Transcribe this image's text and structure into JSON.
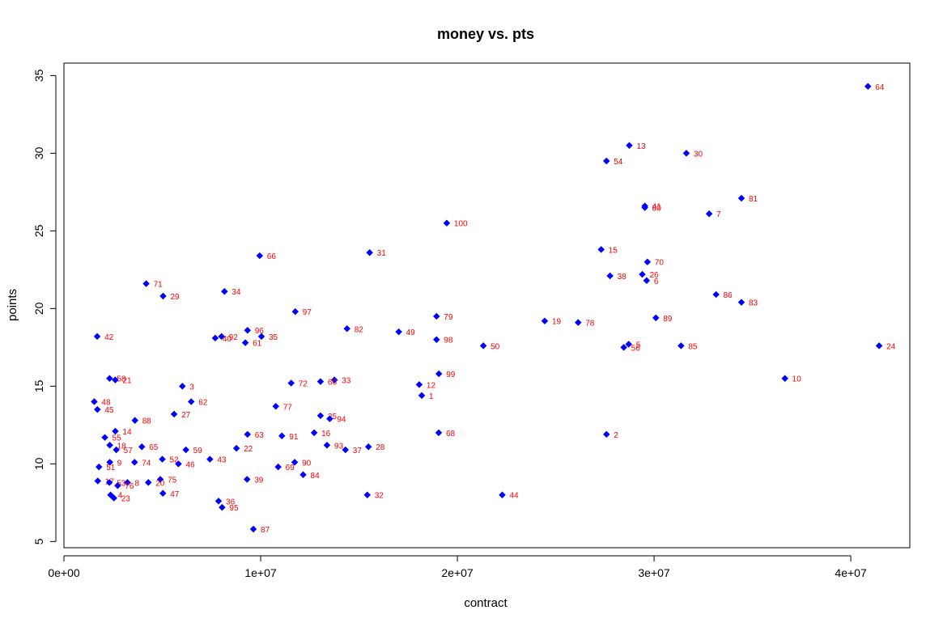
{
  "chart_data": {
    "type": "scatter",
    "title": "money vs. pts",
    "xlabel": "contract",
    "ylabel": "points",
    "xlim": [
      0,
      43000000
    ],
    "ylim": [
      4.6,
      35.8
    ],
    "x_ticks": [
      0,
      10000000,
      20000000,
      30000000,
      40000000
    ],
    "x_tick_labels": [
      "0e+00",
      "1e+07",
      "2e+07",
      "3e+07",
      "4e+07"
    ],
    "y_ticks": [
      5,
      10,
      15,
      20,
      25,
      30,
      35
    ],
    "y_tick_labels": [
      "5",
      "10",
      "15",
      "20",
      "25",
      "30",
      "35"
    ],
    "grid": false,
    "point_color": "#0000ff",
    "label_color": "#ff0000",
    "points": [
      {
        "label": "64",
        "x": 40870000,
        "y": 34.3
      },
      {
        "label": "13",
        "x": 28740000,
        "y": 30.5
      },
      {
        "label": "30",
        "x": 31640000,
        "y": 30.0
      },
      {
        "label": "54",
        "x": 27580000,
        "y": 29.5
      },
      {
        "label": "81",
        "x": 34440000,
        "y": 27.1
      },
      {
        "label": "41",
        "x": 29530000,
        "y": 26.6
      },
      {
        "label": "80",
        "x": 29530000,
        "y": 26.5
      },
      {
        "label": "7",
        "x": 32800000,
        "y": 26.1
      },
      {
        "label": "100",
        "x": 19460000,
        "y": 25.5
      },
      {
        "label": "15",
        "x": 27310000,
        "y": 23.8
      },
      {
        "label": "31",
        "x": 15540000,
        "y": 23.6
      },
      {
        "label": "66",
        "x": 9950000,
        "y": 23.4
      },
      {
        "label": "70",
        "x": 29660000,
        "y": 23.0
      },
      {
        "label": "38",
        "x": 27760000,
        "y": 22.1
      },
      {
        "label": "26",
        "x": 29400000,
        "y": 22.2
      },
      {
        "label": "6",
        "x": 29620000,
        "y": 21.8
      },
      {
        "label": "71",
        "x": 4180000,
        "y": 21.6
      },
      {
        "label": "34",
        "x": 8160000,
        "y": 21.1
      },
      {
        "label": "86",
        "x": 33150000,
        "y": 20.9
      },
      {
        "label": "29",
        "x": 5040000,
        "y": 20.8
      },
      {
        "label": "83",
        "x": 34440000,
        "y": 20.4
      },
      {
        "label": "97",
        "x": 11760000,
        "y": 19.8
      },
      {
        "label": "79",
        "x": 18940000,
        "y": 19.5
      },
      {
        "label": "89",
        "x": 30090000,
        "y": 19.4
      },
      {
        "label": "19",
        "x": 24440000,
        "y": 19.2
      },
      {
        "label": "78",
        "x": 26140000,
        "y": 19.1
      },
      {
        "label": "82",
        "x": 14390000,
        "y": 18.7
      },
      {
        "label": "96",
        "x": 9330000,
        "y": 18.6
      },
      {
        "label": "49",
        "x": 17020000,
        "y": 18.5
      },
      {
        "label": "42",
        "x": 1690000,
        "y": 18.2
      },
      {
        "label": "35",
        "x": 10040000,
        "y": 18.2
      },
      {
        "label": "92",
        "x": 8010000,
        "y": 18.2
      },
      {
        "label": "40",
        "x": 7690000,
        "y": 18.1
      },
      {
        "label": "98",
        "x": 18940000,
        "y": 18.0
      },
      {
        "label": "61",
        "x": 9220000,
        "y": 17.8
      },
      {
        "label": "5",
        "x": 28710000,
        "y": 17.7
      },
      {
        "label": "24",
        "x": 41440000,
        "y": 17.6
      },
      {
        "label": "85",
        "x": 31370000,
        "y": 17.6
      },
      {
        "label": "50",
        "x": 21320000,
        "y": 17.6
      },
      {
        "label": "56",
        "x": 28460000,
        "y": 17.5
      },
      {
        "label": "99",
        "x": 19060000,
        "y": 15.8
      },
      {
        "label": "10",
        "x": 36650000,
        "y": 15.5
      },
      {
        "label": "58",
        "x": 2320000,
        "y": 15.5
      },
      {
        "label": "21",
        "x": 2610000,
        "y": 15.4
      },
      {
        "label": "33",
        "x": 13750000,
        "y": 15.4
      },
      {
        "label": "60",
        "x": 13040000,
        "y": 15.3
      },
      {
        "label": "72",
        "x": 11550000,
        "y": 15.2
      },
      {
        "label": "12",
        "x": 18060000,
        "y": 15.1
      },
      {
        "label": "3",
        "x": 6020000,
        "y": 15.0
      },
      {
        "label": "1",
        "x": 18190000,
        "y": 14.4
      },
      {
        "label": "48",
        "x": 1540000,
        "y": 14.0
      },
      {
        "label": "62",
        "x": 6470000,
        "y": 14.0
      },
      {
        "label": "77",
        "x": 10770000,
        "y": 13.7
      },
      {
        "label": "45",
        "x": 1700000,
        "y": 13.5
      },
      {
        "label": "27",
        "x": 5600000,
        "y": 13.2
      },
      {
        "label": "25",
        "x": 13040000,
        "y": 13.1
      },
      {
        "label": "94",
        "x": 13510000,
        "y": 12.9
      },
      {
        "label": "88",
        "x": 3610000,
        "y": 12.8
      },
      {
        "label": "14",
        "x": 2610000,
        "y": 12.1
      },
      {
        "label": "68",
        "x": 19050000,
        "y": 12.0
      },
      {
        "label": "16",
        "x": 12720000,
        "y": 12.0
      },
      {
        "label": "2",
        "x": 27580000,
        "y": 11.9
      },
      {
        "label": "63",
        "x": 9330000,
        "y": 11.9
      },
      {
        "label": "91",
        "x": 11080000,
        "y": 11.8
      },
      {
        "label": "55",
        "x": 2080000,
        "y": 11.7
      },
      {
        "label": "93",
        "x": 13370000,
        "y": 11.2
      },
      {
        "label": "18",
        "x": 2330000,
        "y": 11.2
      },
      {
        "label": "65",
        "x": 3960000,
        "y": 11.1
      },
      {
        "label": "28",
        "x": 15480000,
        "y": 11.1
      },
      {
        "label": "22",
        "x": 8770000,
        "y": 11.0
      },
      {
        "label": "37",
        "x": 14310000,
        "y": 10.9
      },
      {
        "label": "57",
        "x": 2660000,
        "y": 10.9
      },
      {
        "label": "59",
        "x": 6200000,
        "y": 10.9
      },
      {
        "label": "52",
        "x": 5000000,
        "y": 10.3
      },
      {
        "label": "43",
        "x": 7420000,
        "y": 10.3
      },
      {
        "label": "90",
        "x": 11730000,
        "y": 10.1
      },
      {
        "label": "9",
        "x": 2330000,
        "y": 10.1
      },
      {
        "label": "74",
        "x": 3590000,
        "y": 10.1
      },
      {
        "label": "46",
        "x": 5820000,
        "y": 10.0
      },
      {
        "label": "51",
        "x": 1780000,
        "y": 9.8
      },
      {
        "label": "69",
        "x": 10890000,
        "y": 9.8
      },
      {
        "label": "84",
        "x": 12160000,
        "y": 9.3
      },
      {
        "label": "39",
        "x": 9310000,
        "y": 9.0
      },
      {
        "label": "75",
        "x": 4900000,
        "y": 9.0
      },
      {
        "label": "17",
        "x": 1720000,
        "y": 8.9
      },
      {
        "label": "53",
        "x": 2310000,
        "y": 8.8
      },
      {
        "label": "8",
        "x": 3230000,
        "y": 8.8
      },
      {
        "label": "20",
        "x": 4290000,
        "y": 8.8
      },
      {
        "label": "76",
        "x": 2730000,
        "y": 8.6
      },
      {
        "label": "47",
        "x": 5030000,
        "y": 8.1
      },
      {
        "label": "44",
        "x": 22280000,
        "y": 8.0
      },
      {
        "label": "32",
        "x": 15420000,
        "y": 8.0
      },
      {
        "label": "4",
        "x": 2370000,
        "y": 8.0
      },
      {
        "label": "23",
        "x": 2540000,
        "y": 7.8
      },
      {
        "label": "36",
        "x": 7860000,
        "y": 7.6
      },
      {
        "label": "95",
        "x": 8040000,
        "y": 7.2
      },
      {
        "label": "87",
        "x": 9630000,
        "y": 5.8
      }
    ]
  }
}
